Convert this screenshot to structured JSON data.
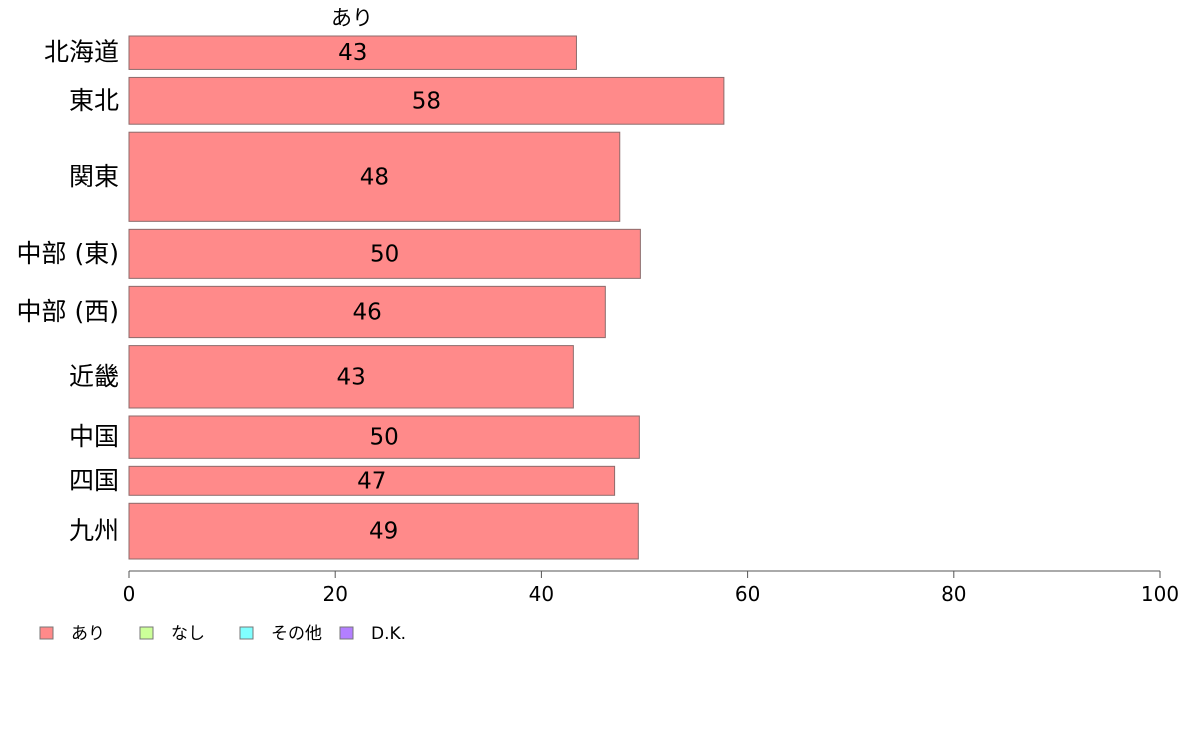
{
  "chart_data": {
    "type": "bar",
    "orientation": "horizontal",
    "title": "あり",
    "categories": [
      "北海道",
      "東北",
      "関東",
      "中部 (東)",
      "中部 (西)",
      "近畿",
      "中国",
      "四国",
      "九州"
    ],
    "series": [
      {
        "name": "あり",
        "values": [
          43,
          58,
          48,
          50,
          46,
          43,
          50,
          47,
          49
        ],
        "color": "#ff8a8a"
      }
    ],
    "data_labels": [
      "43",
      "58",
      "48",
      "50",
      "46",
      "43",
      "50",
      "47",
      "49"
    ],
    "bar_values_precise": [
      43.4,
      57.7,
      47.6,
      49.6,
      46.2,
      43.1,
      49.5,
      47.1,
      49.4
    ],
    "bar_weights": [
      1.5,
      2.1,
      4.0,
      2.2,
      2.3,
      2.8,
      1.9,
      1.3,
      2.5
    ],
    "xlim": [
      0,
      100
    ],
    "xticks": [
      "0",
      "20",
      "40",
      "60",
      "80",
      "100"
    ],
    "grid": false,
    "legend_position": "bottom-left",
    "legend": [
      {
        "label": "あり",
        "color": "#ff8a8a"
      },
      {
        "label": "なし",
        "color": "#ccff99"
      },
      {
        "label": "その他",
        "color": "#80ffff"
      },
      {
        "label": "D.K.",
        "color": "#b37fff"
      }
    ]
  }
}
